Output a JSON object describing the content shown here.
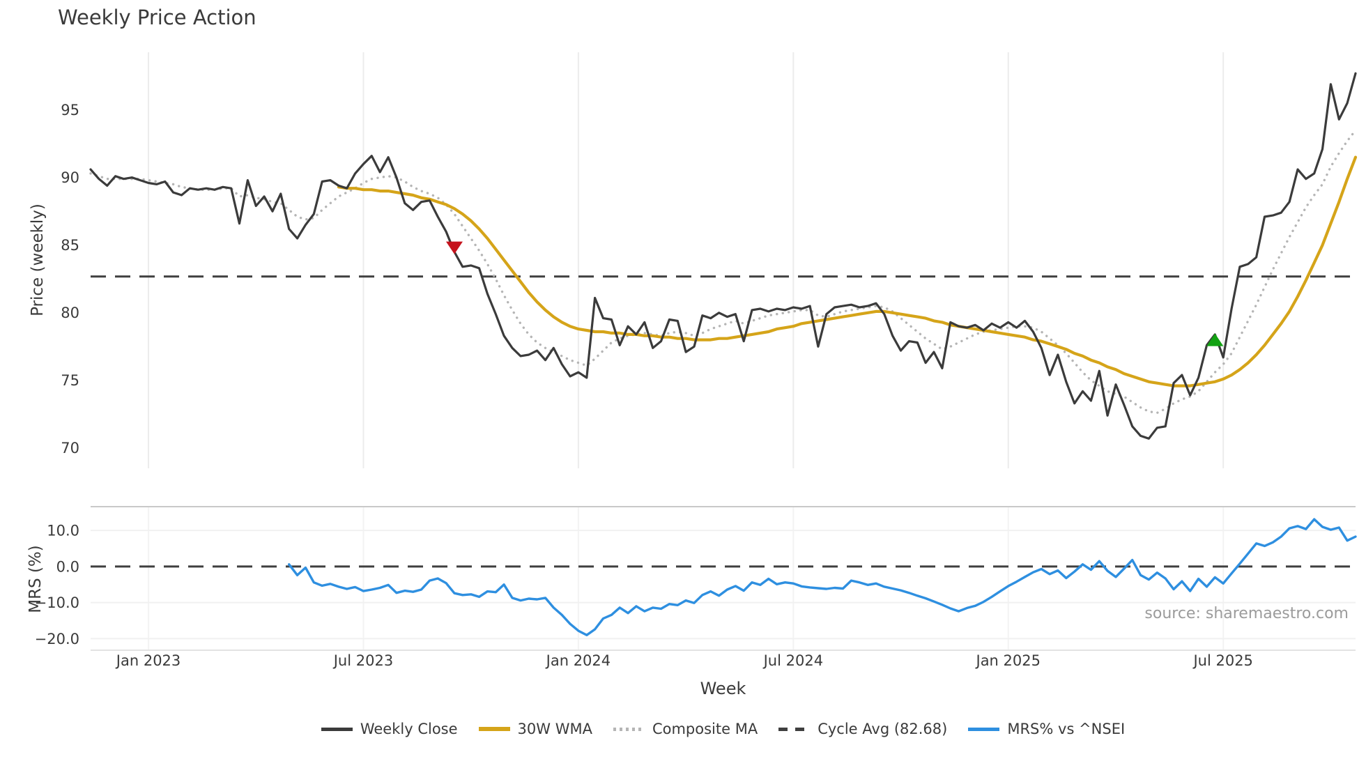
{
  "page": {
    "title": "Weekly Price Action",
    "source_note": "source: sharemaestro.com"
  },
  "colors": {
    "text": "#3a3a3a",
    "grid": "#ececec",
    "panel_spine": "#c9c9c9",
    "weekly_close": "#3b3b3b",
    "wma30": "#d5a419",
    "composite_ma": "#b5b5b5",
    "cycle_avg": "#3f3f3f",
    "mrs": "#2e8fe0",
    "sell_marker": "#c5131d",
    "buy_marker": "#12a212",
    "source_text": "#9b9b9b"
  },
  "legend": [
    {
      "label": "Weekly Close",
      "color": "#3b3b3b",
      "style": "solid"
    },
    {
      "label": "30W WMA",
      "color": "#d5a419",
      "style": "solid-thick"
    },
    {
      "label": "Composite MA",
      "color": "#b5b5b5",
      "style": "dotted"
    },
    {
      "label": "Cycle Avg (82.68)",
      "color": "#3f3f3f",
      "style": "dashed"
    },
    {
      "label": "MRS% vs ^NSEI",
      "color": "#2e8fe0",
      "style": "solid"
    }
  ],
  "chart_data": {
    "type": "line",
    "title": "Weekly Price Action",
    "xlabel": "Week",
    "x_unit": "week-index (weekly data, Nov 2022 - Oct 2025)",
    "n_points": 154,
    "x_ticks": [
      {
        "index": 7,
        "label": "Jan 2023"
      },
      {
        "index": 33,
        "label": "Jul 2023"
      },
      {
        "index": 59,
        "label": "Jan 2024"
      },
      {
        "index": 85,
        "label": "Jul 2024"
      },
      {
        "index": 111,
        "label": "Jan 2025"
      },
      {
        "index": 137,
        "label": "Jul 2025"
      }
    ],
    "panels": [
      {
        "name": "price",
        "ylabel": "Price (weekly)",
        "ylim": [
          68.5,
          99.26
        ],
        "grid": "vertical",
        "yticks": [
          {
            "v": 95,
            "label": "95"
          },
          {
            "v": 90,
            "label": "90"
          },
          {
            "v": 85,
            "label": "85"
          },
          {
            "v": 80,
            "label": "80"
          },
          {
            "v": 75,
            "label": "75"
          },
          {
            "v": 70,
            "label": "70"
          }
        ],
        "reference_line": {
          "label": "Cycle Avg (82.68)",
          "value": 82.68,
          "style": "dashed",
          "color": "#3f3f3f"
        },
        "markers": [
          {
            "type": "sell",
            "shape": "triangle-down",
            "color": "#c5131d",
            "index": 44,
            "value": 84.8
          },
          {
            "type": "buy",
            "shape": "triangle-up",
            "color": "#12a212",
            "index": 136,
            "value": 78.0
          }
        ],
        "series": [
          {
            "name": "Weekly Close",
            "color": "#3b3b3b",
            "style": "solid",
            "width": 3.2,
            "values": [
              90.6,
              89.9,
              89.4,
              90.1,
              89.9,
              90.0,
              89.8,
              89.6,
              89.5,
              89.7,
              88.9,
              88.7,
              89.2,
              89.1,
              89.2,
              89.1,
              89.3,
              89.2,
              86.6,
              89.8,
              87.9,
              88.6,
              87.5,
              88.8,
              86.2,
              85.5,
              86.5,
              87.3,
              89.7,
              89.8,
              89.4,
              89.2,
              90.3,
              91.0,
              91.6,
              90.4,
              91.5,
              90.0,
              88.1,
              87.6,
              88.2,
              88.3,
              87.1,
              86.0,
              84.5,
              83.4,
              83.5,
              83.3,
              81.4,
              79.9,
              78.3,
              77.4,
              76.8,
              76.9,
              77.2,
              76.5,
              77.4,
              76.2,
              75.3,
              75.6,
              75.2,
              81.1,
              79.6,
              79.5,
              77.6,
              79.0,
              78.4,
              79.3,
              77.4,
              77.9,
              79.5,
              79.4,
              77.1,
              77.5,
              79.8,
              79.6,
              80.0,
              79.7,
              79.9,
              77.9,
              80.2,
              80.3,
              80.1,
              80.3,
              80.2,
              80.4,
              80.3,
              80.5,
              77.5,
              79.9,
              80.4,
              80.5,
              80.6,
              80.4,
              80.5,
              80.7,
              79.9,
              78.3,
              77.2,
              77.9,
              77.8,
              76.3,
              77.1,
              75.9,
              79.3,
              79.0,
              78.9,
              79.1,
              78.7,
              79.2,
              78.9,
              79.3,
              78.9,
              79.4,
              78.6,
              77.4,
              75.4,
              76.9,
              74.9,
              73.3,
              74.2,
              73.5,
              75.7,
              72.4,
              74.7,
              73.2,
              71.6,
              70.9,
              70.7,
              71.5,
              71.6,
              74.8,
              75.4,
              73.9,
              75.2,
              77.6,
              78.4,
              76.7,
              80.3,
              83.4,
              83.6,
              84.1,
              87.1,
              87.2,
              87.4,
              88.2,
              90.6,
              89.9,
              90.3,
              92.1,
              96.9,
              94.3,
              95.5,
              97.7
            ]
          },
          {
            "name": "30W WMA",
            "color": "#d5a419",
            "style": "solid",
            "width": 4.2,
            "values": [
              null,
              null,
              null,
              null,
              null,
              null,
              null,
              null,
              null,
              null,
              null,
              null,
              null,
              null,
              null,
              null,
              null,
              null,
              null,
              null,
              null,
              null,
              null,
              null,
              null,
              null,
              null,
              null,
              null,
              null,
              89.3,
              89.2,
              89.2,
              89.1,
              89.1,
              89.0,
              89.0,
              88.9,
              88.8,
              88.7,
              88.5,
              88.4,
              88.2,
              88.0,
              87.7,
              87.3,
              86.8,
              86.2,
              85.5,
              84.7,
              83.9,
              83.1,
              82.3,
              81.5,
              80.8,
              80.2,
              79.7,
              79.3,
              79.0,
              78.8,
              78.7,
              78.6,
              78.6,
              78.5,
              78.5,
              78.4,
              78.4,
              78.3,
              78.3,
              78.2,
              78.2,
              78.1,
              78.1,
              78.0,
              78.0,
              78.0,
              78.1,
              78.1,
              78.2,
              78.3,
              78.4,
              78.5,
              78.6,
              78.8,
              78.9,
              79.0,
              79.2,
              79.3,
              79.4,
              79.5,
              79.6,
              79.7,
              79.8,
              79.9,
              80.0,
              80.1,
              80.1,
              80.0,
              79.9,
              79.8,
              79.7,
              79.6,
              79.4,
              79.3,
              79.1,
              79.0,
              78.9,
              78.8,
              78.7,
              78.6,
              78.5,
              78.4,
              78.3,
              78.2,
              78.0,
              77.9,
              77.7,
              77.5,
              77.3,
              77.0,
              76.8,
              76.5,
              76.3,
              76.0,
              75.8,
              75.5,
              75.3,
              75.1,
              74.9,
              74.8,
              74.7,
              74.6,
              74.6,
              74.6,
              74.7,
              74.8,
              74.9,
              75.1,
              75.4,
              75.8,
              76.3,
              76.9,
              77.6,
              78.4,
              79.2,
              80.1,
              81.2,
              82.4,
              83.7,
              85.0,
              86.6,
              88.2,
              89.9,
              91.5
            ]
          },
          {
            "name": "Composite MA",
            "color": "#b5b5b5",
            "style": "dotted",
            "width": 3.4,
            "values": [
              90.3,
              90.1,
              89.9,
              89.9,
              89.9,
              89.9,
              89.9,
              89.8,
              89.7,
              89.6,
              89.5,
              89.3,
              89.2,
              89.1,
              89.1,
              89.1,
              89.2,
              89.2,
              88.6,
              88.7,
              88.5,
              88.4,
              88.2,
              88.1,
              87.6,
              87.1,
              86.9,
              87.0,
              87.6,
              88.1,
              88.6,
              88.9,
              89.2,
              89.6,
              89.9,
              90.0,
              90.1,
              90.0,
              89.7,
              89.3,
              89.0,
              88.8,
              88.5,
              88.0,
              87.3,
              86.4,
              85.5,
              84.6,
              83.6,
              82.5,
              81.3,
              80.2,
              79.2,
              78.4,
              77.8,
              77.4,
              77.1,
              76.8,
              76.5,
              76.3,
              76.1,
              76.6,
              77.2,
              77.8,
              78.1,
              78.3,
              78.4,
              78.5,
              78.4,
              78.3,
              78.5,
              78.6,
              78.5,
              78.3,
              78.5,
              78.8,
              79.0,
              79.2,
              79.4,
              79.2,
              79.4,
              79.6,
              79.8,
              79.9,
              80.0,
              80.1,
              80.2,
              80.2,
              79.8,
              79.7,
              79.9,
              80.1,
              80.2,
              80.3,
              80.4,
              80.5,
              80.4,
              80.1,
              79.6,
              79.1,
              78.6,
              78.1,
              77.7,
              77.3,
              77.5,
              77.8,
              78.1,
              78.4,
              78.6,
              78.7,
              78.8,
              78.9,
              79.0,
              79.0,
              78.9,
              78.6,
              78.1,
              77.6,
              77.0,
              76.3,
              75.6,
              75.0,
              74.6,
              74.2,
              74.0,
              73.8,
              73.4,
              73.0,
              72.7,
              72.6,
              72.9,
              73.3,
              73.6,
              73.8,
              74.2,
              74.9,
              75.6,
              76.2,
              77.0,
              78.2,
              79.4,
              80.6,
              81.9,
              83.2,
              84.4,
              85.6,
              86.7,
              87.8,
              88.7,
              89.5,
              90.8,
              91.8,
              92.7,
              93.5
            ]
          }
        ]
      },
      {
        "name": "mrs",
        "ylabel": "MRS (%)",
        "ylim": [
          -23.2,
          16.6
        ],
        "grid": "horizontal+vertical",
        "yticks": [
          {
            "v": 10,
            "label": "10.0"
          },
          {
            "v": 0,
            "label": "0.0"
          },
          {
            "v": -10,
            "label": "−10.0"
          },
          {
            "v": -20,
            "label": "−20.0"
          }
        ],
        "reference_line": {
          "label": "zero line",
          "value": 0,
          "style": "dashed",
          "color": "#3f3f3f"
        },
        "series": [
          {
            "name": "MRS% vs ^NSEI",
            "color": "#2e8fe0",
            "style": "solid",
            "width": 3.4,
            "values": [
              null,
              null,
              null,
              null,
              null,
              null,
              null,
              null,
              null,
              null,
              null,
              null,
              null,
              null,
              null,
              null,
              null,
              null,
              null,
              null,
              null,
              null,
              null,
              null,
              0.6,
              -2.4,
              -0.3,
              -4.4,
              -5.3,
              -4.8,
              -5.6,
              -6.2,
              -5.7,
              -6.8,
              -6.4,
              -5.9,
              -5.1,
              -7.3,
              -6.7,
              -7.0,
              -6.4,
              -3.9,
              -3.3,
              -4.6,
              -7.4,
              -7.9,
              -7.7,
              -8.4,
              -6.9,
              -7.1,
              -5.0,
              -8.7,
              -9.4,
              -8.9,
              -9.1,
              -8.7,
              -11.4,
              -13.4,
              -15.9,
              -17.8,
              -19.0,
              -17.4,
              -14.4,
              -13.4,
              -11.4,
              -12.9,
              -11.0,
              -12.4,
              -11.4,
              -11.7,
              -10.4,
              -10.7,
              -9.4,
              -10.1,
              -7.9,
              -6.9,
              -8.1,
              -6.4,
              -5.4,
              -6.7,
              -4.4,
              -5.1,
              -3.4,
              -4.9,
              -4.4,
              -4.7,
              -5.5,
              -5.8,
              -6.0,
              -6.2,
              -5.9,
              -6.1,
              -3.9,
              -4.4,
              -5.1,
              -4.7,
              -5.6,
              -6.1,
              -6.6,
              -7.3,
              -8.1,
              -8.8,
              -9.7,
              -10.6,
              -11.6,
              -12.4,
              -11.5,
              -10.9,
              -9.8,
              -8.4,
              -6.9,
              -5.4,
              -4.2,
              -2.9,
              -1.6,
              -0.7,
              -2.1,
              -1.1,
              -3.2,
              -1.4,
              0.6,
              -0.9,
              1.5,
              -1.2,
              -2.9,
              -0.6,
              1.8,
              -2.4,
              -3.6,
              -1.7,
              -3.3,
              -6.3,
              -4.1,
              -6.8,
              -3.4,
              -5.6,
              -3.0,
              -4.7,
              -1.9,
              0.8,
              3.6,
              6.4,
              5.7,
              6.7,
              8.3,
              10.6,
              11.2,
              10.4,
              13.1,
              11.0,
              10.2,
              10.8,
              7.2,
              8.3
            ]
          }
        ]
      }
    ]
  }
}
